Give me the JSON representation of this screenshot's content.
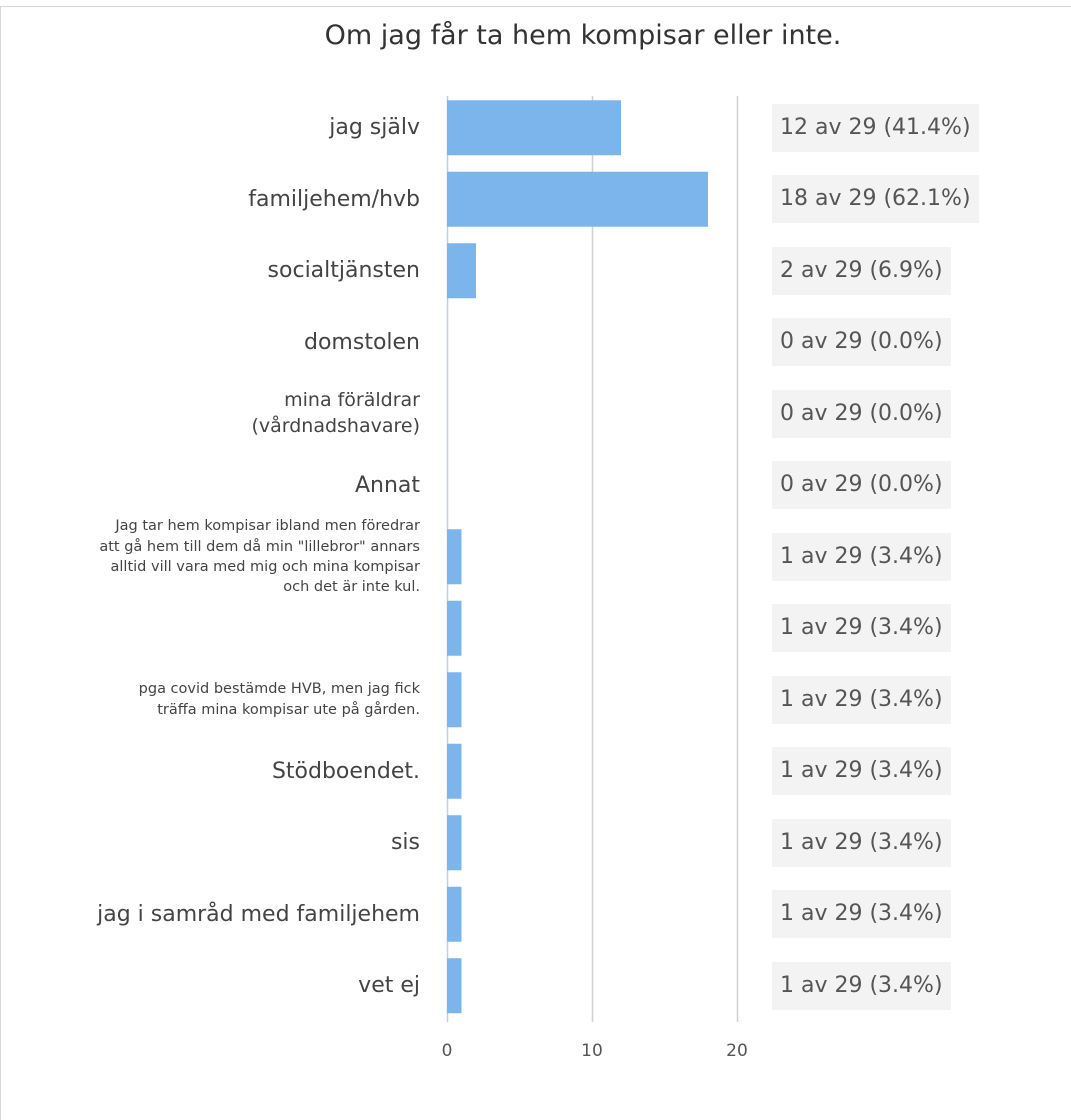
{
  "chart_data": {
    "type": "bar",
    "orientation": "horizontal",
    "title": "Om jag får ta hem kompisar eller inte.",
    "categories": [
      "jag själv",
      "familjehem/hvb",
      "socialtjänsten",
      "domstolen",
      "mina föräldrar (vårdnadshavare)",
      "Annat",
      "Jag tar hem kompisar ibland men föredrar att gå hem till dem då min \"lillebror\" annars alltid vill vara med mig och mina kompisar och det är inte kul.",
      "",
      "pga covid bestämde HVB, men jag fick träffa mina kompisar ute på gården.",
      "Stödboendet.",
      "sis",
      "jag i samråd med familjehem",
      "vet ej"
    ],
    "values": [
      12,
      18,
      2,
      0,
      0,
      0,
      1,
      1,
      1,
      1,
      1,
      1,
      1
    ],
    "value_labels": [
      "12 av 29 (41.4%)",
      "18 av 29 (62.1%)",
      "2 av 29 (6.9%)",
      "0 av 29 (0.0%)",
      "0 av 29 (0.0%)",
      "0 av 29 (0.0%)",
      "1 av 29 (3.4%)",
      "1 av 29 (3.4%)",
      "1 av 29 (3.4%)",
      "1 av 29 (3.4%)",
      "1 av 29 (3.4%)",
      "1 av 29 (3.4%)",
      "1 av 29 (3.4%)"
    ],
    "xlim": [
      0,
      20
    ],
    "x_ticks": [
      "0",
      "10",
      "20"
    ],
    "grid": true,
    "bar_color": "#7cb5ec"
  }
}
